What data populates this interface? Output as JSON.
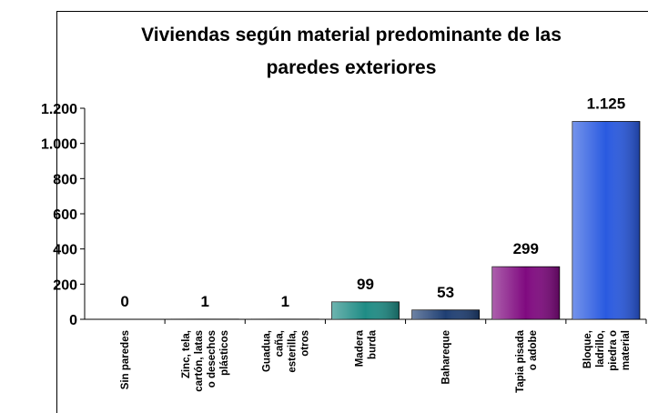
{
  "chart_data": {
    "type": "bar",
    "title": [
      "Viviendas según material predominante de las",
      "paredes exteriores"
    ],
    "categories": [
      [
        "Sin paredes"
      ],
      [
        "Zinc, tela,",
        "cartón, latas",
        "o desechos",
        "plásticos"
      ],
      [
        "Guadua,",
        "caña,",
        "esterilla,",
        "otros"
      ],
      [
        "Madera",
        "burda"
      ],
      [
        "Bahareque"
      ],
      [
        "Tapia pisada",
        "o adobe"
      ],
      [
        "Bloque,",
        "ladrillo,",
        "piedra o",
        "material"
      ]
    ],
    "values": [
      0,
      1,
      1,
      99,
      53,
      299,
      1125
    ],
    "value_labels": [
      "0",
      "1",
      "1",
      "99",
      "53",
      "299",
      "1.125"
    ],
    "colors": [
      "#3366cc",
      "#3366cc",
      "#3366cc",
      "#1f8c85",
      "#1f3f73",
      "#800a80",
      "#2a5ae0"
    ],
    "ylim": [
      0,
      1200
    ],
    "yticks": [
      0,
      200,
      400,
      600,
      800,
      {
        "value": 1000,
        "label": "1.000"
      },
      {
        "value": 1200,
        "label": "1.200"
      }
    ]
  }
}
